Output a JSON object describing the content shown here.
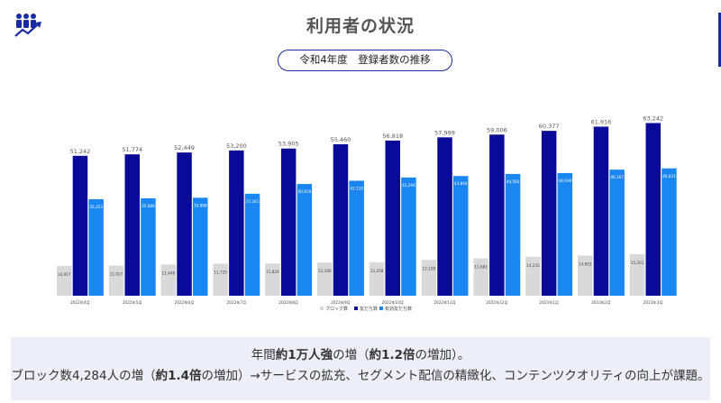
{
  "header": {
    "title": "利用者の状況"
  },
  "colors": {
    "accent": "#1a2aa0",
    "block": "#d9d9d9",
    "friends": "#0a0a99",
    "active": "#1a86f2",
    "footer_bg": "#eeeef8"
  },
  "chart_data": {
    "type": "bar",
    "title": "令和4年度　登録者数の推移",
    "categories": [
      "2022年4月",
      "2022年5月",
      "2022年6月",
      "2022年7月",
      "2022年8月",
      "2022年9月",
      "2022年10月",
      "2022年11月",
      "2022年12月",
      "2023年1月",
      "2023年2月",
      "2023年3月"
    ],
    "series": [
      {
        "name": "ブロック数",
        "color": "#d9d9d9",
        "values": [
          10917,
          11027,
          11446,
          11725,
          11826,
          12160,
          12258,
          13109,
          13681,
          14235,
          14693,
          15201
        ],
        "labels": [
          "10,917",
          "11,027",
          "11,446",
          "11,725",
          "11,826",
          "12,160",
          "12,258",
          "13,109",
          "13,681",
          "14,235",
          "14,693",
          "15,201"
        ]
      },
      {
        "name": "友だち数",
        "color": "#0a0a99",
        "values": [
          51242,
          51774,
          52449,
          53200,
          53905,
          55460,
          56818,
          57999,
          59006,
          60377,
          61916,
          63242
        ],
        "labels": [
          "51,242",
          "51,774",
          "52,449",
          "53,200",
          "53,905",
          "55,460",
          "56,818",
          "57,999",
          "59,006",
          "60,377",
          "61,916",
          "63,242"
        ]
      },
      {
        "name": "有効友だち数",
        "color": "#1a86f2",
        "values": [
          35353,
          35686,
          35888,
          37341,
          40919,
          42110,
          43294,
          43844,
          44592,
          44930,
          46167,
          46631
        ],
        "labels": [
          "35,353",
          "35,686",
          "35,888",
          "37,341",
          "40,919",
          "42,110",
          "43,294",
          "43,844",
          "44,592",
          "44,930",
          "46,167",
          "46,631"
        ]
      }
    ],
    "ylim": [
      0,
      70000
    ],
    "grid": false,
    "legend": "bottom"
  },
  "footer": {
    "line1_a": "年間",
    "line1_b": "約1万人強",
    "line1_c": "の増（",
    "line1_d": "約1.2倍",
    "line1_e": "の増加）。",
    "line2_a": "ブロック数4,284人の増（",
    "line2_b": "約1.4倍",
    "line2_c": "の増加）→サービスの拡充、セグメント配信の精緻化、コンテンツクオリティの向上が課題。"
  }
}
